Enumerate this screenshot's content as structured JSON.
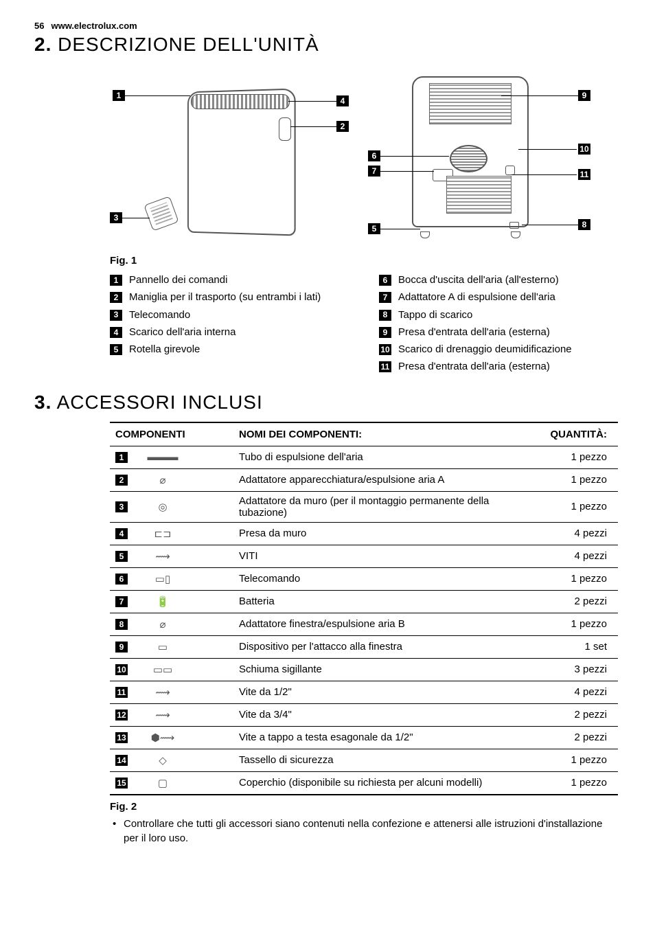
{
  "header": {
    "page": "56",
    "site": "www.electrolux.com"
  },
  "section2": {
    "num": "2.",
    "title": "DESCRIZIONE DELL'UNITÀ"
  },
  "section3": {
    "num": "3.",
    "title": "ACCESSORI INCLUSI"
  },
  "fig1_caption": "Fig. 1",
  "fig2_caption": "Fig. 2",
  "callouts_front": {
    "n1": "1",
    "n2": "2",
    "n3": "3",
    "n4": "4",
    "n5": "5"
  },
  "callouts_rear": {
    "n6": "6",
    "n7": "7",
    "n8": "8",
    "n9": "9",
    "n10": "10",
    "n11": "11"
  },
  "legend_left": [
    {
      "n": "1",
      "t": "Pannello dei comandi"
    },
    {
      "n": "2",
      "t": "Maniglia per il trasporto (su entrambi i lati)"
    },
    {
      "n": "3",
      "t": "Telecomando"
    },
    {
      "n": "4",
      "t": "Scarico dell'aria interna"
    },
    {
      "n": "5",
      "t": "Rotella girevole"
    }
  ],
  "legend_right": [
    {
      "n": "6",
      "t": "Bocca d'uscita dell'aria (all'esterno)"
    },
    {
      "n": "7",
      "t": "Adattatore A di espulsione dell'aria"
    },
    {
      "n": "8",
      "t": "Tappo di scarico"
    },
    {
      "n": "9",
      "t": "Presa d'entrata dell'aria (esterna)"
    },
    {
      "n": "10",
      "t": "Scarico di drenaggio deumidificazione"
    },
    {
      "n": "11",
      "t": "Presa d'entrata dell'aria (esterna)"
    }
  ],
  "acc_table": {
    "col_comp": "COMPONENTI",
    "col_name": "NOMI DEI COMPONENTI:",
    "col_qty": "QUANTITÀ:",
    "rows": [
      {
        "n": "1",
        "name": "Tubo di espulsione dell'aria",
        "qty": "1 pezzo"
      },
      {
        "n": "2",
        "name": "Adattatore apparecchiatura/espulsione aria A",
        "qty": "1 pezzo"
      },
      {
        "n": "3",
        "name": "Adattatore da muro\n(per il montaggio permanente della tubazione)",
        "qty": "1 pezzo"
      },
      {
        "n": "4",
        "name": "Presa da muro",
        "qty": "4 pezzi"
      },
      {
        "n": "5",
        "name": "VITI",
        "qty": "4 pezzi"
      },
      {
        "n": "6",
        "name": "Telecomando",
        "qty": "1 pezzo"
      },
      {
        "n": "7",
        "name": "Batteria",
        "qty": "2 pezzi"
      },
      {
        "n": "8",
        "name": "Adattatore finestra/espulsione aria B",
        "qty": "1 pezzo"
      },
      {
        "n": "9",
        "name": "Dispositivo per l'attacco alla finestra",
        "qty": "1 set"
      },
      {
        "n": "10",
        "name": "Schiuma sigillante",
        "qty": "3 pezzi"
      },
      {
        "n": "11",
        "name": "Vite da 1/2\"",
        "qty": "4 pezzi"
      },
      {
        "n": "12",
        "name": "Vite da 3/4\"",
        "qty": "2 pezzi"
      },
      {
        "n": "13",
        "name": "Vite a tappo a testa esagonale da 1/2\"",
        "qty": "2 pezzi"
      },
      {
        "n": "14",
        "name": "Tassello di sicurezza",
        "qty": "1 pezzo"
      },
      {
        "n": "15",
        "name": "Coperchio (disponibile su richiesta per alcuni modelli)",
        "qty": "1 pezzo"
      }
    ]
  },
  "note": "Controllare che tutti gli accessori siano contenuti nella confezione e attenersi alle istruzioni d'installazione per il loro uso.",
  "part_icons": {
    "1": "▬▬▬",
    "2": "⌀",
    "3": "◎",
    "4": "⊏⊐",
    "5": "⟿",
    "6": "▭▯",
    "7": "🔋",
    "8": "⌀",
    "9": "▭",
    "10": "▭▭",
    "11": "⟿",
    "12": "⟿",
    "13": "⬢⟿",
    "14": "◇",
    "15": "▢"
  }
}
